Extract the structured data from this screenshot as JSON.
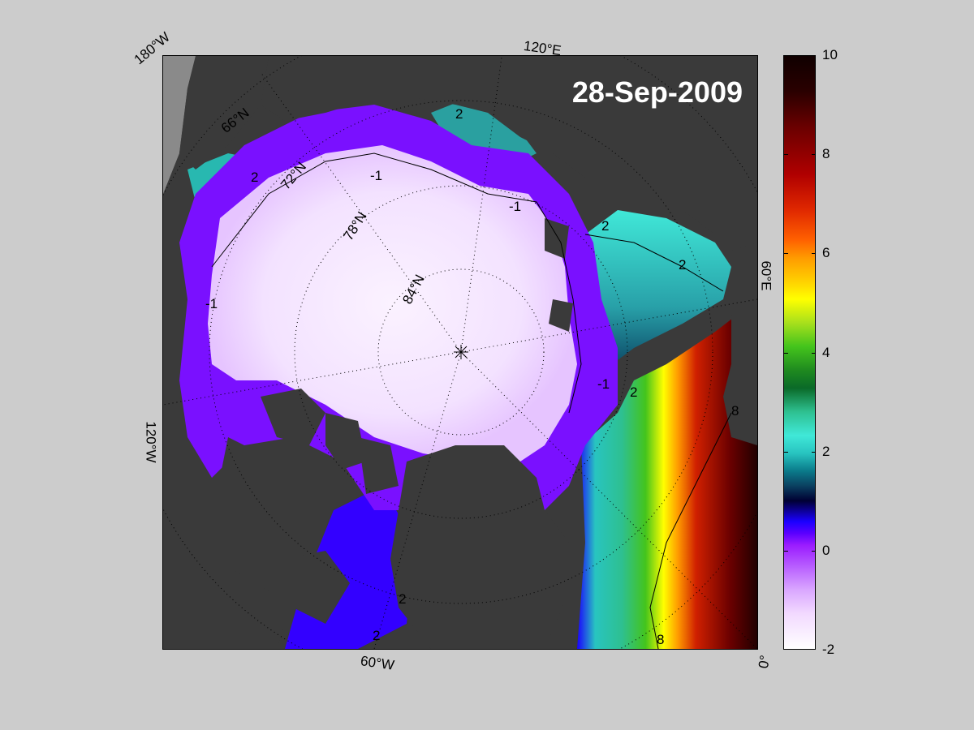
{
  "map": {
    "date": "28-Sep-2009",
    "longitude_labels": {
      "lon_180w": "180°W",
      "lon_120e": "120°E",
      "lon_60e": "60°E",
      "lon_120w": "120°W",
      "lon_60w": "60°W",
      "lon_0": "0°"
    },
    "latitude_labels": {
      "lat_66": "66°N",
      "lat_72": "72°N",
      "lat_78": "78°N",
      "lat_84": "84°N"
    },
    "contour_labels": {
      "minus1": "-1",
      "two": "2",
      "eight": "8"
    },
    "colors": {
      "land": "#3a3a3a",
      "outside": "#8a8a8a",
      "ice_cold": "#f4e6ff",
      "purple": "#9a1cff",
      "blue": "#1a00ff",
      "cyan": "#40e8d8",
      "green": "#44c41c",
      "yellow": "#ffff00",
      "orange": "#ff9a00",
      "red": "#d02000",
      "darkred": "#300000"
    }
  },
  "colorbar": {
    "min": -2,
    "max": 10,
    "ticks": [
      "10",
      "8",
      "6",
      "4",
      "2",
      "0",
      "-2"
    ]
  }
}
